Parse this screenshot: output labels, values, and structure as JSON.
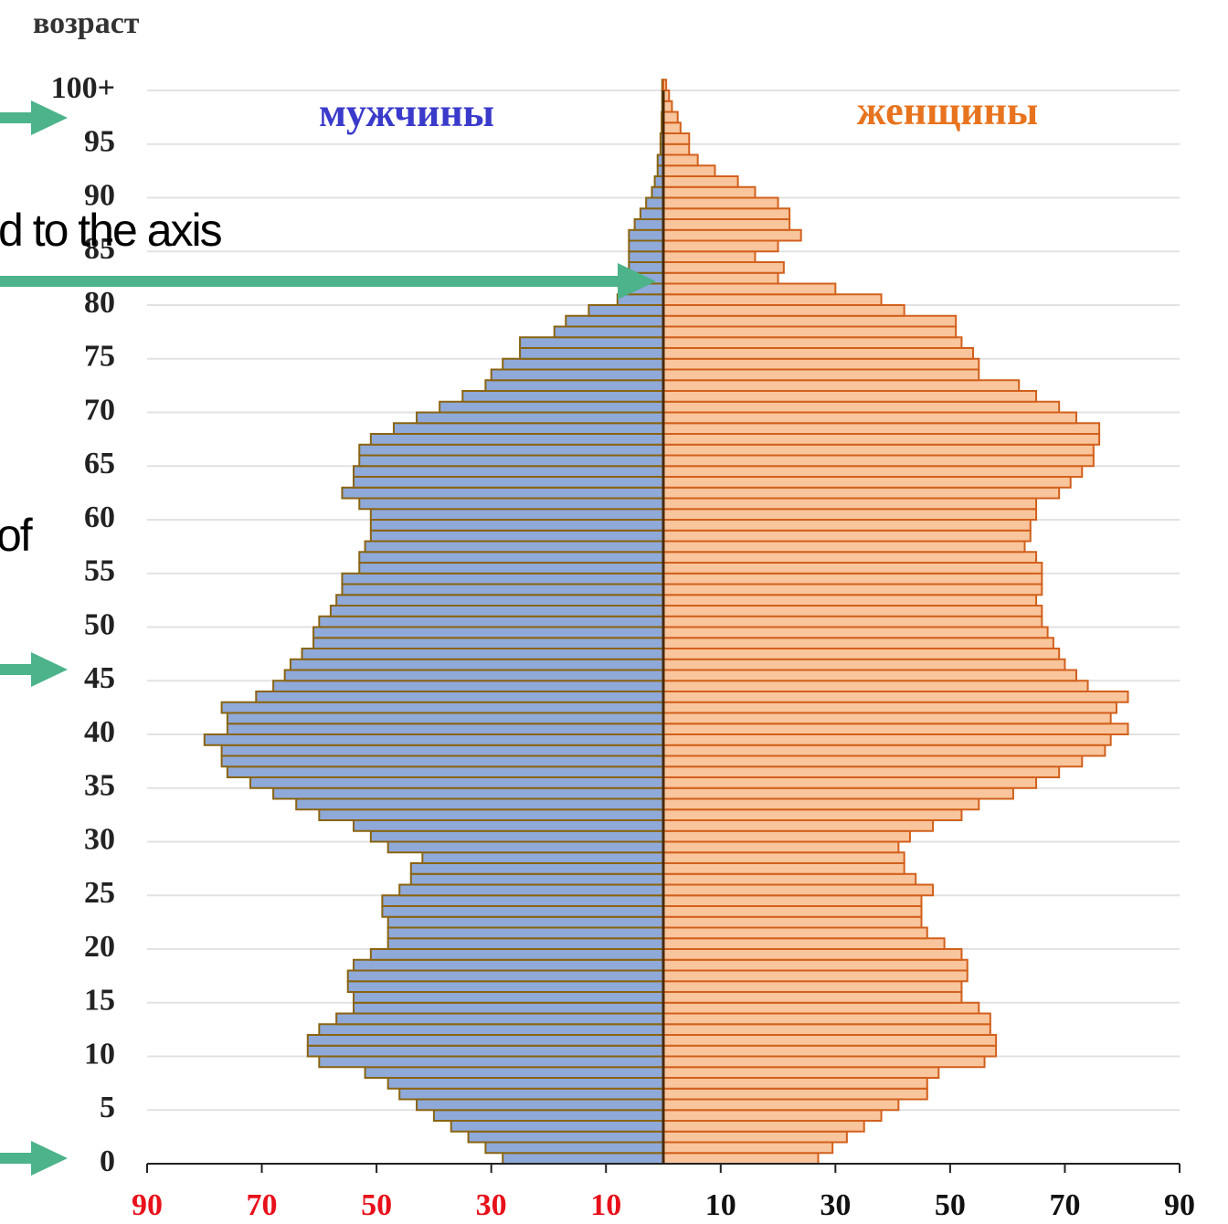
{
  "chart_data": {
    "type": "pyramid",
    "title": "возраст",
    "annotations": [
      "d to the axis",
      "of"
    ],
    "categories_axis": "age",
    "ylim": [
      0,
      101
    ],
    "yticks": [
      0,
      5,
      10,
      15,
      20,
      25,
      30,
      35,
      40,
      45,
      50,
      55,
      60,
      65,
      70,
      75,
      80,
      85,
      90,
      95,
      {
        "value": 100,
        "label": "100+"
      }
    ],
    "xlim": [
      -90,
      90
    ],
    "xticks": [
      {
        "value": -90,
        "label": "90"
      },
      {
        "value": -70,
        "label": "70"
      },
      {
        "value": -50,
        "label": "50"
      },
      {
        "value": -30,
        "label": "30"
      },
      {
        "value": -10,
        "label": "10"
      },
      10,
      30,
      50,
      70,
      90
    ],
    "grid": true,
    "series": [
      {
        "name": "мужчины",
        "side": "left",
        "color": "#8fa9d9",
        "edge_color": "#8a6410",
        "name_color": "#3a3acb",
        "values": [
          28,
          31,
          34,
          37,
          40,
          43,
          46,
          48,
          52,
          60,
          62,
          62,
          60,
          57,
          54,
          54,
          55,
          55,
          54,
          51,
          48,
          48,
          48,
          49,
          49,
          46,
          44,
          44,
          42,
          48,
          51,
          54,
          60,
          64,
          68,
          72,
          76,
          77,
          77,
          80,
          76,
          76,
          77,
          71,
          68,
          66,
          65,
          63,
          61,
          61,
          60,
          58,
          57,
          56,
          56,
          53,
          53,
          52,
          51,
          51,
          51,
          53,
          56,
          54,
          54,
          53,
          53,
          51,
          47,
          43,
          39,
          35,
          31,
          30,
          28,
          25,
          25,
          19,
          17,
          13,
          8,
          7,
          6,
          6,
          6,
          6,
          6,
          5,
          4,
          3,
          2,
          1.5,
          1,
          1,
          0.5,
          0.5,
          0.3,
          0.3,
          0.2,
          0.2,
          0.2
        ]
      },
      {
        "name": "женщины",
        "side": "right",
        "color": "#f9c59c",
        "edge_color": "#d2601c",
        "name_color": "#e8731e",
        "values": [
          27,
          29.5,
          32,
          35,
          38,
          41,
          46,
          46,
          48,
          56,
          58,
          58,
          57,
          57,
          55,
          52,
          52,
          53,
          53,
          52,
          49,
          46,
          45,
          45,
          45,
          47,
          44,
          42,
          42,
          41,
          43,
          47,
          52,
          55,
          61,
          65,
          69,
          73,
          77,
          78,
          81,
          78,
          79,
          81,
          74,
          72,
          70,
          69,
          68,
          67,
          66,
          66,
          65,
          66,
          66,
          66,
          65,
          63,
          64,
          64,
          65,
          65,
          69,
          71,
          73,
          75,
          75,
          76,
          76,
          72,
          69,
          65,
          62,
          55,
          55,
          54,
          52,
          51,
          51,
          42,
          38,
          30,
          20,
          21,
          16,
          20,
          24,
          22,
          22,
          20,
          16,
          13,
          9,
          6,
          4.5,
          4.5,
          3,
          2.5,
          1.5,
          1,
          0.5
        ]
      }
    ]
  }
}
